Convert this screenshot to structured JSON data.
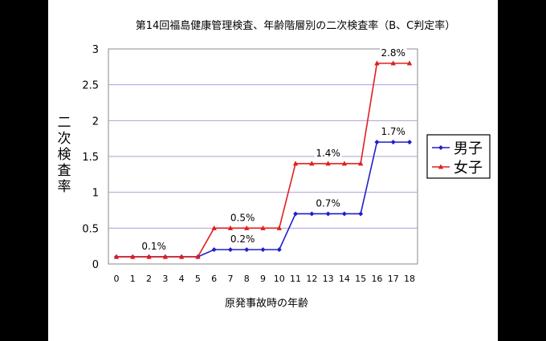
{
  "chart_data": {
    "type": "line",
    "title": "第14回福島健康管理検査、年齢階層別の二次検査率（B、C判定率）",
    "xlabel": "原発事故時の年齢",
    "ylabel": "二次検査率",
    "x": [
      0,
      1,
      2,
      3,
      4,
      5,
      6,
      7,
      8,
      9,
      10,
      11,
      12,
      13,
      14,
      15,
      16,
      17,
      18
    ],
    "ylim": [
      0,
      3
    ],
    "yticks": [
      "0",
      "0.5",
      "1",
      "1.5",
      "2",
      "2.5",
      "3"
    ],
    "grid": true,
    "legend_position": "right",
    "series": [
      {
        "name": "男子",
        "color": "#1f1fc8",
        "marker": "diamond",
        "values": [
          0.1,
          0.1,
          0.1,
          0.1,
          0.1,
          0.1,
          0.2,
          0.2,
          0.2,
          0.2,
          0.2,
          0.7,
          0.7,
          0.7,
          0.7,
          0.7,
          1.7,
          1.7,
          1.7
        ]
      },
      {
        "name": "女子",
        "color": "#e01e1e",
        "marker": "triangle",
        "values": [
          0.1,
          0.1,
          0.1,
          0.1,
          0.1,
          0.1,
          0.5,
          0.5,
          0.5,
          0.5,
          0.5,
          1.4,
          1.4,
          1.4,
          1.4,
          1.4,
          2.8,
          2.8,
          2.8
        ]
      }
    ],
    "annotations": [
      {
        "text": "0.1%",
        "x": 2.3,
        "y": 0.1
      },
      {
        "text": "0.2%",
        "x": 7.75,
        "y": 0.2
      },
      {
        "text": "0.5%",
        "x": 7.75,
        "y": 0.5
      },
      {
        "text": "0.7%",
        "x": 13.0,
        "y": 0.7
      },
      {
        "text": "1.4%",
        "x": 13.0,
        "y": 1.4
      },
      {
        "text": "1.7%",
        "x": 17.0,
        "y": 1.7
      },
      {
        "text": "2.8%",
        "x": 17.0,
        "y": 2.8
      }
    ]
  }
}
